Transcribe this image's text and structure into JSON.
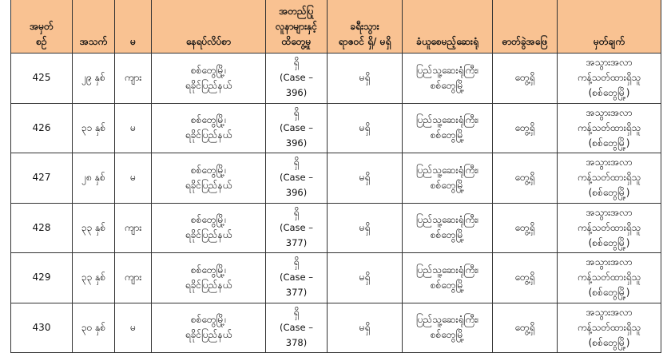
{
  "headers": [
    [
      "အမှတ်",
      "စဉ်"
    ],
    [
      "အသက်"
    ],
    [
      "မ"
    ],
    [
      "နေရပ်လိပ်စာ"
    ],
    [
      "အတည်ပြု",
      "လူနာများနှင့်",
      "ထိတွေ့မှု"
    ],
    [
      "ခရီးသွား",
      "ရာဇဝင် ရှိ/ မရှိ"
    ],
    [
      "ခံယူစေမည့်ဆေးရုံ"
    ],
    [
      "ဓာတ်ခွဲအဖြေ"
    ],
    [
      "မှတ်ချက်"
    ]
  ],
  "rows": [
    {
      "no": "425",
      "age": "၂၉ နှစ်",
      "sex": "ကျား",
      "addr": [
        "စစ်တွေမြို့၊",
        "ရခိုင်ပြည်နယ်"
      ],
      "contact": "ရှိ",
      "case": "(Case – 396)",
      "travel": "မရှိ",
      "hospital": [
        "ပြည်သူ့ဆေးရုံကြီး၊",
        "စစ်တွေမြို့"
      ],
      "result": "တွေ့ရှိ",
      "remark": [
        "အသွားအလာ",
        "ကန့်သတ်ထားရှိသူ",
        "(စစ်တွေမြို့)"
      ]
    },
    {
      "no": "426",
      "age": "၃၁ နှစ်",
      "sex": "မ",
      "addr": [
        "စစ်တွေမြို့၊",
        "ရခိုင်ပြည်နယ်"
      ],
      "contact": "ရှိ",
      "case": "(Case – 396)",
      "travel": "မရှိ",
      "hospital": [
        "ပြည်သူ့ဆေးရုံကြီး၊",
        "စစ်တွေမြို့"
      ],
      "result": "တွေ့ရှိ",
      "remark": [
        "အသွားအလာ",
        "ကန့်သတ်ထားရှိသူ",
        "(စစ်တွေမြို့)"
      ]
    },
    {
      "no": "427",
      "age": "၂၈ နှစ်",
      "sex": "မ",
      "addr": [
        "စစ်တွေမြို့၊",
        "ရခိုင်ပြည်နယ်"
      ],
      "contact": "ရှိ",
      "case": "(Case – 396)",
      "travel": "မရှိ",
      "hospital": [
        "ပြည်သူ့ဆေးရုံကြီး၊",
        "စစ်တွေမြို့"
      ],
      "result": "တွေ့ရှိ",
      "remark": [
        "အသွားအလာ",
        "ကန့်သတ်ထားရှိသူ",
        "(စစ်တွေမြို့)"
      ]
    },
    {
      "no": "428",
      "age": "၃၃ နှစ်",
      "sex": "ကျား",
      "addr": [
        "စစ်တွေမြို့၊",
        "ရခိုင်ပြည်နယ်"
      ],
      "contact": "ရှိ",
      "case": "(Case – 377)",
      "travel": "မရှိ",
      "hospital": [
        "ပြည်သူ့ဆေးရုံကြီး၊",
        "စစ်တွေမြို့"
      ],
      "result": "တွေ့ရှိ",
      "remark": [
        "အသွားအလာ",
        "ကန့်သတ်ထားရှိသူ",
        "(စစ်တွေမြို့)"
      ]
    },
    {
      "no": "429",
      "age": "၃၃ နှစ်",
      "sex": "ကျား",
      "addr": [
        "စစ်တွေမြို့၊",
        "ရခိုင်ပြည်နယ်"
      ],
      "contact": "ရှိ",
      "case": "(Case – 377)",
      "travel": "မရှိ",
      "hospital": [
        "ပြည်သူ့ဆေးရုံကြီး၊",
        "စစ်တွေမြို့"
      ],
      "result": "တွေ့ရှိ",
      "remark": [
        "အသွားအလာ",
        "ကန့်သတ်ထားရှိသူ",
        "(စစ်တွေမြို့)"
      ]
    },
    {
      "no": "430",
      "age": "၃၀ နှစ်",
      "sex": "မ",
      "addr": [
        "စစ်တွေမြို့၊",
        "ရခိုင်ပြည်နယ်"
      ],
      "contact": "ရှိ",
      "case": "(Case – 378)",
      "travel": "မရှိ",
      "hospital": [
        "ပြည်သူ့ဆေးရုံကြီး၊",
        "စစ်တွေမြို့"
      ],
      "result": "တွေ့ရှိ",
      "remark": [
        "အသွားအလာ",
        "ကန့်သတ်ထားရှိသူ",
        "(စစ်တွေမြို့)"
      ]
    }
  ]
}
